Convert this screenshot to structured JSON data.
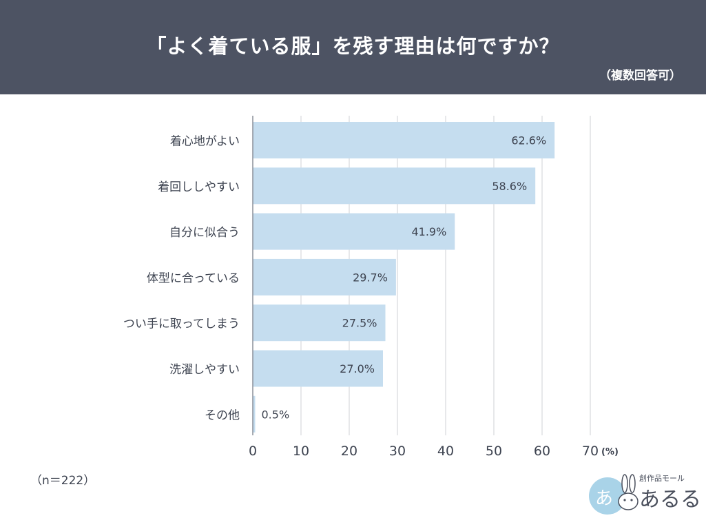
{
  "header": {
    "title": "「よく着ている服」を残す理由は何ですか？",
    "subtitle": "（複数回答可）"
  },
  "footer": {
    "sample_size": "（n＝222）"
  },
  "logo": {
    "mall_text": "創作品モール",
    "name_text": "あるる",
    "badge_text": "あ"
  },
  "colors": {
    "header_bg": "#4d5363",
    "bar_fill": "#c5ddef",
    "grid": "#cfd2d6",
    "text": "#3d4350",
    "logo_badge": "#a9d3e8"
  },
  "chart_data": {
    "type": "bar",
    "orientation": "horizontal",
    "title": "「よく着ている服」を残す理由は何ですか？",
    "categories": [
      "着心地がよい",
      "着回ししやすい",
      "自分に似合う",
      "体型に合っている",
      "つい手に取ってしまう",
      "洗濯しやすい",
      "その他"
    ],
    "values": [
      62.6,
      58.6,
      41.9,
      29.7,
      27.5,
      27.0,
      0.5
    ],
    "value_labels": [
      "62.6%",
      "58.6%",
      "41.9%",
      "29.7%",
      "27.5%",
      "27.0%",
      "0.5%"
    ],
    "x_ticks": [
      0,
      10,
      20,
      30,
      40,
      50,
      60,
      70
    ],
    "x_tick_labels": [
      "0",
      "10",
      "20",
      "30",
      "40",
      "50",
      "60",
      "70"
    ],
    "x_unit": "(%)",
    "xlim": [
      0,
      70
    ],
    "grid": true
  }
}
